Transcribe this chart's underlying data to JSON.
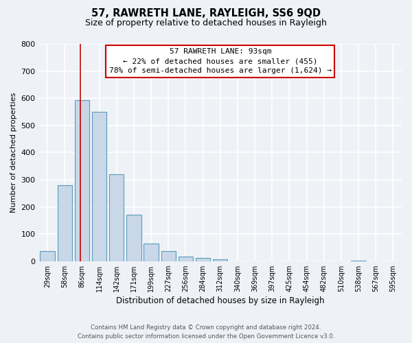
{
  "title": "57, RAWRETH LANE, RAYLEIGH, SS6 9QD",
  "subtitle": "Size of property relative to detached houses in Rayleigh",
  "xlabel": "Distribution of detached houses by size in Rayleigh",
  "ylabel": "Number of detached properties",
  "bar_labels": [
    "29sqm",
    "58sqm",
    "86sqm",
    "114sqm",
    "142sqm",
    "171sqm",
    "199sqm",
    "227sqm",
    "256sqm",
    "284sqm",
    "312sqm",
    "340sqm",
    "369sqm",
    "397sqm",
    "425sqm",
    "454sqm",
    "482sqm",
    "510sqm",
    "538sqm",
    "567sqm",
    "595sqm"
  ],
  "bar_values": [
    38,
    280,
    592,
    549,
    320,
    170,
    65,
    38,
    18,
    12,
    8,
    0,
    0,
    0,
    0,
    0,
    0,
    0,
    3,
    0,
    0
  ],
  "bar_color": "#c8d8e8",
  "bar_edge_color": "#5a9abf",
  "property_line_color": "#cc0000",
  "ylim": [
    0,
    800
  ],
  "yticks": [
    0,
    100,
    200,
    300,
    400,
    500,
    600,
    700,
    800
  ],
  "annotation_line1": "57 RAWRETH LANE: 93sqm",
  "annotation_line2": "← 22% of detached houses are smaller (455)",
  "annotation_line3": "78% of semi-detached houses are larger (1,624) →",
  "footer_line1": "Contains HM Land Registry data © Crown copyright and database right 2024.",
  "footer_line2": "Contains public sector information licensed under the Open Government Licence v3.0.",
  "background_color": "#eef2f7",
  "grid_color": "#ffffff"
}
